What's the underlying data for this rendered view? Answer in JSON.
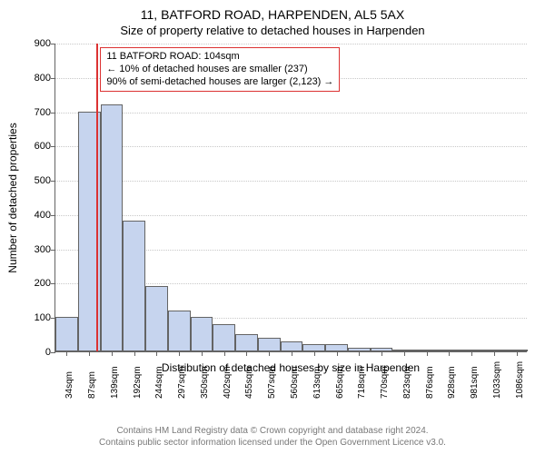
{
  "title_line1": "11, BATFORD ROAD, HARPENDEN, AL5 5AX",
  "title_line2": "Size of property relative to detached houses in Harpenden",
  "ylabel": "Number of detached properties",
  "xlabel": "Distribution of detached houses by size in Harpenden",
  "chart": {
    "type": "histogram",
    "background_color": "#ffffff",
    "axis_color": "#646464",
    "grid_color": "#c8c8c8",
    "bar_fill": "#c6d4ee",
    "bar_border": "#646464",
    "marker_color": "#dc3232",
    "marker_x_value": 104,
    "annotation_border": "#dc3232",
    "ylim_min": 0,
    "ylim_max": 900,
    "ytick_step": 100,
    "xticks": [
      34,
      87,
      139,
      192,
      244,
      297,
      350,
      402,
      455,
      507,
      560,
      613,
      665,
      718,
      770,
      823,
      876,
      928,
      981,
      1033,
      1086
    ],
    "xtick_unit": "sqm",
    "bars": [
      {
        "x": 34,
        "count": 100
      },
      {
        "x": 87,
        "count": 700
      },
      {
        "x": 139,
        "count": 720
      },
      {
        "x": 192,
        "count": 380
      },
      {
        "x": 244,
        "count": 190
      },
      {
        "x": 297,
        "count": 120
      },
      {
        "x": 350,
        "count": 100
      },
      {
        "x": 402,
        "count": 80
      },
      {
        "x": 455,
        "count": 50
      },
      {
        "x": 507,
        "count": 40
      },
      {
        "x": 560,
        "count": 30
      },
      {
        "x": 613,
        "count": 20
      },
      {
        "x": 665,
        "count": 20
      },
      {
        "x": 718,
        "count": 10
      },
      {
        "x": 770,
        "count": 10
      },
      {
        "x": 823,
        "count": 6
      },
      {
        "x": 876,
        "count": 4
      },
      {
        "x": 928,
        "count": 2
      },
      {
        "x": 981,
        "count": 2
      },
      {
        "x": 1033,
        "count": 2
      },
      {
        "x": 1086,
        "count": 1
      }
    ]
  },
  "annotation": {
    "line1": "11 BATFORD ROAD: 104sqm",
    "line2": "← 10% of detached houses are smaller (237)",
    "line3": "90% of semi-detached houses are larger (2,123) →"
  },
  "footer": {
    "line1": "Contains HM Land Registry data © Crown copyright and database right 2024.",
    "line2": "Contains public sector information licensed under the Open Government Licence v3.0."
  },
  "yticks": [
    0,
    100,
    200,
    300,
    400,
    500,
    600,
    700,
    800,
    900
  ]
}
